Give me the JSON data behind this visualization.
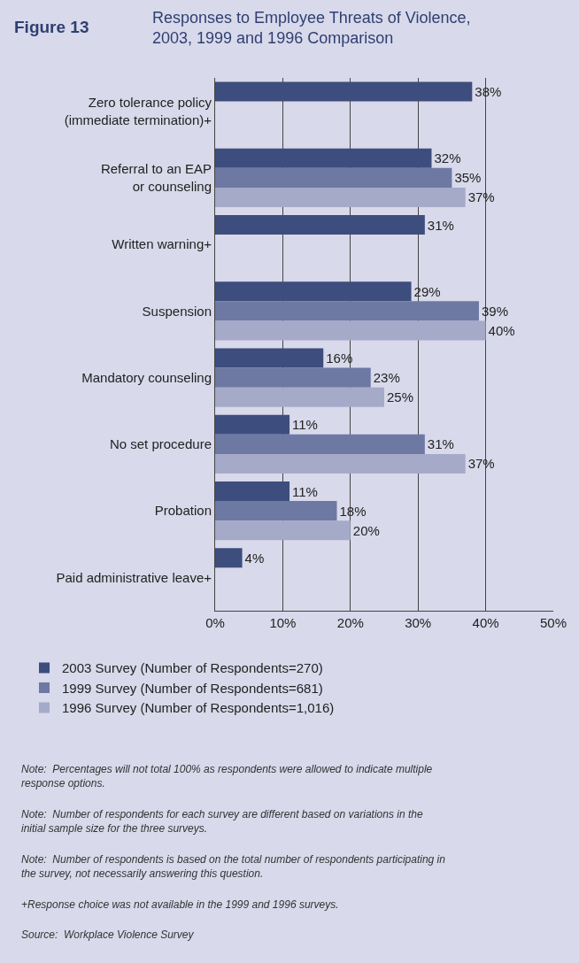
{
  "chart_data": {
    "type": "bar",
    "orientation": "horizontal",
    "title": "Responses to Employee Threats of Violence, 2003, 1999 and 1996 Comparison",
    "categories": [
      "Zero tolerance policy\n(immediate termination)+",
      "Referral to an EAP\nor counseling",
      "Written warning+",
      "Suspension",
      "Mandatory counseling",
      "No set procedure",
      "Probation",
      "Paid administrative leave+"
    ],
    "series": [
      {
        "name": "2003 Survey (Number of Respondents=270)",
        "color": "#3d4d7e",
        "values": [
          38,
          32,
          31,
          29,
          16,
          11,
          11,
          4
        ],
        "value_labels": [
          "38%",
          "32%",
          "31%",
          "29%",
          "16%",
          "11%",
          "11%",
          "4%"
        ]
      },
      {
        "name": "1999 Survey (Number of Respondents=681)",
        "color": "#6e79a3",
        "values": [
          null,
          35,
          null,
          39,
          23,
          31,
          18,
          null
        ],
        "value_labels": [
          null,
          "35%",
          null,
          "39%",
          "23%",
          "31%",
          "18%",
          null
        ]
      },
      {
        "name": "1996 Survey (Number of Respondents=1,016)",
        "color": "#a5aac8",
        "values": [
          null,
          37,
          null,
          40,
          25,
          37,
          20,
          null
        ],
        "value_labels": [
          null,
          "37%",
          null,
          "40%",
          "25%",
          "37%",
          "20%",
          null
        ]
      }
    ],
    "xlim": [
      0,
      50
    ],
    "xticks": [
      {
        "value": 0,
        "label": "0%"
      },
      {
        "value": 10,
        "label": "10%"
      },
      {
        "value": 20,
        "label": "20%"
      },
      {
        "value": 30,
        "label": "30%"
      },
      {
        "value": 40,
        "label": "40%"
      },
      {
        "value": 50,
        "label": "50%"
      }
    ],
    "grid": "x",
    "legend": "bottom",
    "annotations": [
      "Figure 13",
      "Note:  Percentages will not total 100% as respondents were allowed to indicate multiple response options.",
      "Note:  Number of respondents for each survey are different based on variations in the initial sample size for the three surveys.",
      "Note:  Number of respondents is based on the total number of respondents participating in the survey, not necessarily answering this question.",
      "+Response choice was not available in the 1999 and 1996 surveys.",
      "Source:  Workplace Violence Survey"
    ]
  }
}
